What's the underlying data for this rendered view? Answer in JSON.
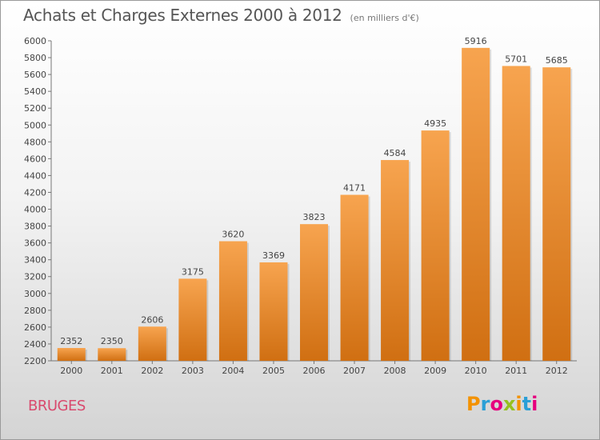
{
  "title": "Achats et Charges Externes 2000 à 2012",
  "subtitle": "(en milliers d'€)",
  "city": "BRUGES",
  "logo": {
    "text": "Proxiti",
    "letters": [
      {
        "ch": "P",
        "color": "#f39200"
      },
      {
        "ch": "r",
        "color": "#2a9fd6"
      },
      {
        "ch": "o",
        "color": "#e6007e"
      },
      {
        "ch": "x",
        "color": "#95c11f"
      },
      {
        "ch": "i",
        "color": "#f39200"
      },
      {
        "ch": "t",
        "color": "#2a9fd6"
      },
      {
        "ch": "i",
        "color": "#e6007e"
      }
    ]
  },
  "colors": {
    "bar_top": "#f7a44f",
    "bar_bottom": "#d06f12",
    "city": "#d94a6e"
  },
  "chart_data": {
    "type": "bar",
    "title": "Achats et Charges Externes 2000 à 2012",
    "subtitle": "(en milliers d'€)",
    "categories": [
      "2000",
      "2001",
      "2002",
      "2003",
      "2004",
      "2005",
      "2006",
      "2007",
      "2008",
      "2009",
      "2010",
      "2011",
      "2012"
    ],
    "values": [
      2352,
      2350,
      2606,
      3175,
      3620,
      3369,
      3823,
      4171,
      4584,
      4935,
      5916,
      5701,
      5685
    ],
    "ylim": [
      2200,
      6000
    ],
    "yticks": [
      2200,
      2400,
      2600,
      2800,
      3000,
      3200,
      3400,
      3600,
      3800,
      4000,
      4200,
      4400,
      4600,
      4800,
      5000,
      5200,
      5400,
      5600,
      5800,
      6000
    ],
    "xlabel": "",
    "ylabel": "",
    "grid": false,
    "data_labels": true
  }
}
